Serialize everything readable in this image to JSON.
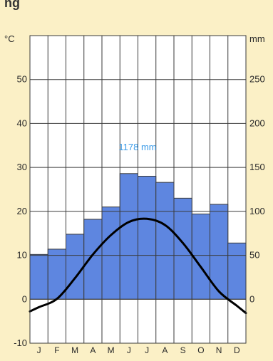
{
  "header_fragment": "ng",
  "colors": {
    "background": "#fbf0c6",
    "plot_background": "#ffffff",
    "precipitation_fill": "#5e86e0",
    "grid": "#3a3a3a",
    "temperature_line": "#000000",
    "annotation": "#3a9be8",
    "text": "#2a2a2a"
  },
  "chart_data": {
    "type": "bar",
    "categories": [
      "J",
      "F",
      "M",
      "A",
      "M",
      "J",
      "J",
      "A",
      "S",
      "O",
      "N",
      "D"
    ],
    "left_axis": {
      "unit": "°C",
      "ticks": [
        "50",
        "40",
        "30",
        "20",
        "10",
        "0",
        "-10"
      ],
      "ylim": [
        -10,
        60
      ]
    },
    "right_axis": {
      "unit": "mm",
      "ticks": [
        "250",
        "200",
        "150",
        "100",
        "50",
        "0"
      ],
      "ylim": [
        -50,
        300
      ]
    },
    "series": [
      {
        "type": "bar",
        "axis": "right",
        "values": [
          51,
          57,
          74,
          91,
          105,
          143,
          140,
          133,
          115,
          97,
          108,
          64
        ]
      },
      {
        "type": "line",
        "axis": "left",
        "values": [
          -1.8,
          0.1,
          4.8,
          10.2,
          14.6,
          17.6,
          18.3,
          16.9,
          12.8,
          7.3,
          1.8,
          -1.5
        ]
      }
    ],
    "annotation": "1178 mm",
    "grid": true
  }
}
